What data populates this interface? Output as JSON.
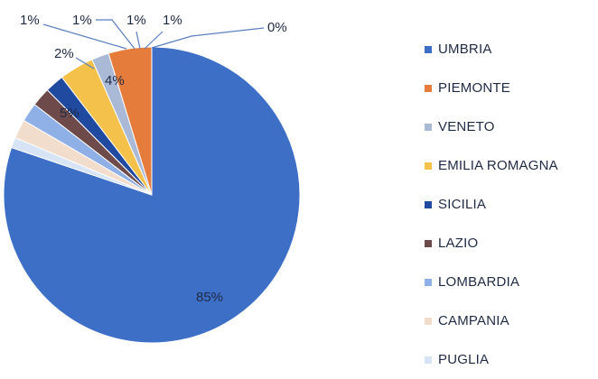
{
  "chart_data": {
    "type": "pie",
    "title": "",
    "categories": [
      "UMBRIA",
      "PIEMONTE",
      "VENETO",
      "EMILIA ROMAGNA",
      "SICILIA",
      "LAZIO",
      "LOMBARDIA",
      "CAMPANIA",
      "PUGLIA"
    ],
    "values": [
      85,
      5,
      2,
      4,
      1,
      1,
      1,
      1,
      0
    ],
    "data_labels": [
      "85%",
      "5%",
      "2%",
      "4%",
      "1%",
      "1%",
      "1%",
      "1%",
      "0%"
    ],
    "colors": [
      "#3d6fc7",
      "#e57c3b",
      "#a9b9d6",
      "#f4c24a",
      "#1f4aa0",
      "#6e4a4a",
      "#8fb0e6",
      "#f2dccb",
      "#d6e4f5"
    ],
    "legend_position": "right"
  }
}
